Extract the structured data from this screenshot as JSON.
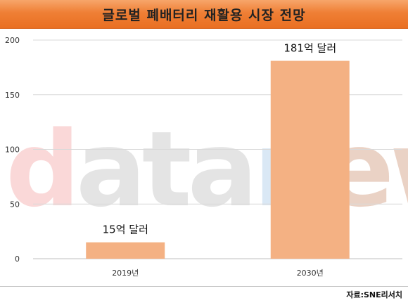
{
  "title": "글로벌 폐배터리 재활용 시장 전망",
  "source": "자료:SNE리서치",
  "watermark": {
    "parts": [
      "d",
      "ata",
      "n",
      "ews"
    ],
    "colors": [
      "#f29a9a",
      "#b9b9b9",
      "#9fc3e6",
      "#c98a6a"
    ]
  },
  "colors": {
    "bar": "#f4b183",
    "grid": "#d9d9d9",
    "axis": "#bfbfbf",
    "title_bg": "#ef7f35"
  },
  "chart_data": {
    "type": "bar",
    "categories": [
      "2019년",
      "2030년"
    ],
    "values": [
      15,
      181
    ],
    "data_labels": [
      "15억 달러",
      "181억 달러"
    ],
    "ylim": [
      0,
      200
    ],
    "yticks": [
      0,
      50,
      100,
      150,
      200
    ],
    "grid": true,
    "legend": "none"
  }
}
